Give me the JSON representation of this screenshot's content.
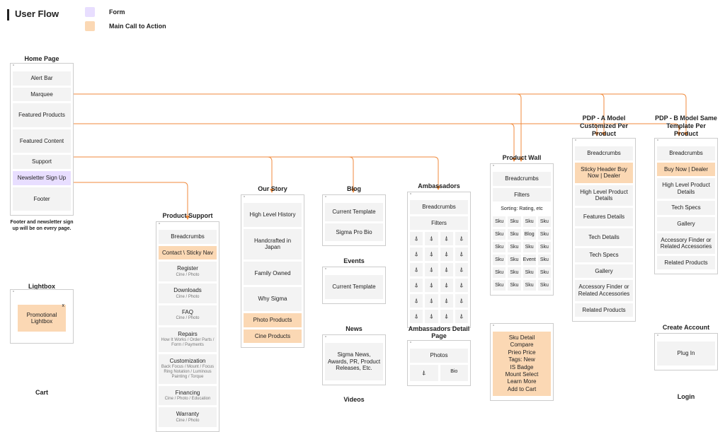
{
  "title": "User Flow",
  "legend": {
    "form": "Form",
    "cta": "Main Call to Action"
  },
  "colors": {
    "form": "#e8deff",
    "cta": "#fbd8b4",
    "cell": "#f3f3f3",
    "connector": "#f08a3c"
  },
  "home": {
    "title": "Home Page",
    "items": [
      "Alert Bar",
      "Marquee",
      "Featured Products",
      "Featured Content",
      "Support",
      "Newsletter Sign Up",
      "Footer"
    ],
    "note": "Footer and newsletter sign up will be on every page."
  },
  "lightbox": {
    "title": "Lightbox",
    "promo": "Promotional Lightbox",
    "x": "x"
  },
  "cart": {
    "title": "Cart"
  },
  "psupport": {
    "title": "Product Support",
    "breadcrumbs": "Breadcrumbs",
    "contact": "Contact \\ Sticky Nav",
    "register": "Register",
    "register_sub": "Cine / Photo",
    "downloads": "Downloads",
    "downloads_sub": "Cine / Photo",
    "faq": "FAQ",
    "faq_sub": "Cine / Photo",
    "repairs": "Repairs",
    "repairs_sub": "How It Works / Order Parts / Form / Payments",
    "customization": "Customization",
    "customization_sub": "Back Focus / Mount / Focus Ring Notation / Luminous Painting / Torque",
    "financing": "Financing",
    "financing_sub": "Cine / Photo / Education",
    "warranty": "Warranty",
    "warranty_sub": "Cine / Photo"
  },
  "ourstory": {
    "title": "Our Story",
    "items": [
      "High Level History",
      "Handcrafted in Japan",
      "Family Owned",
      "Why Sigma",
      "Photo Products",
      "Cine Products"
    ]
  },
  "blog": {
    "title": "Blog",
    "items": [
      "Current Template",
      "Sigma Pro Bio"
    ]
  },
  "events": {
    "title": "Events",
    "item": "Current Template"
  },
  "news": {
    "title": "News",
    "item": "Sigma News, Awards, PR, Product Releases, Etc."
  },
  "videos": {
    "title": "Videos"
  },
  "ambassadors": {
    "title": "Ambassadors",
    "breadcrumbs": "Breadcrumbs",
    "filters": "Filters"
  },
  "ambdetail": {
    "title": "Ambassadors Detail Page",
    "photos": "Photos",
    "bio": "Bio"
  },
  "pwall": {
    "title": "Product Wall",
    "breadcrumbs": "Breadcrumbs",
    "filters": "Filters",
    "sorting": "Sorting: Rating, etc",
    "rows": [
      [
        "Sku",
        "Sku",
        "Sku",
        "Sku"
      ],
      [
        "Sku",
        "Sku",
        "Blog",
        "Sku"
      ],
      [
        "Sku",
        "Sku",
        "Sku",
        "Sku"
      ],
      [
        "Sku",
        "Sku",
        "Event",
        "Sku"
      ],
      [
        "Sku",
        "Sku",
        "Sku",
        "Sku"
      ],
      [
        "Sku",
        "Sku",
        "Sku",
        "Sku"
      ]
    ]
  },
  "skudetail": {
    "lines": [
      "Sku Detail",
      "Compare",
      "Prieo Price",
      "Tags: New",
      "IS Badge",
      "Mount Select",
      "Learn More",
      "Add to Cart"
    ]
  },
  "pdpa": {
    "title": "PDP - A Model Customized Per Product",
    "items": [
      "Breadcrumbs",
      "Sticky Header Buy Now | Dealer",
      "High Level Product Details",
      "Features Details",
      "Tech Details",
      "Tech Specs",
      "Gallery",
      "Accessory Finder or Related Accessories",
      "Related Products"
    ]
  },
  "pdpb": {
    "title": "PDP - B Model Same Template Per Product",
    "items": [
      "Breadcrumbs",
      "Buy Now | Dealer",
      "High Level Product Details",
      "Tech Specs",
      "Gallery",
      "Accessory Finder or Related Accessories",
      "Related Products"
    ]
  },
  "create": {
    "title": "Create Account",
    "item": "Plug In"
  },
  "login": {
    "title": "Login"
  }
}
